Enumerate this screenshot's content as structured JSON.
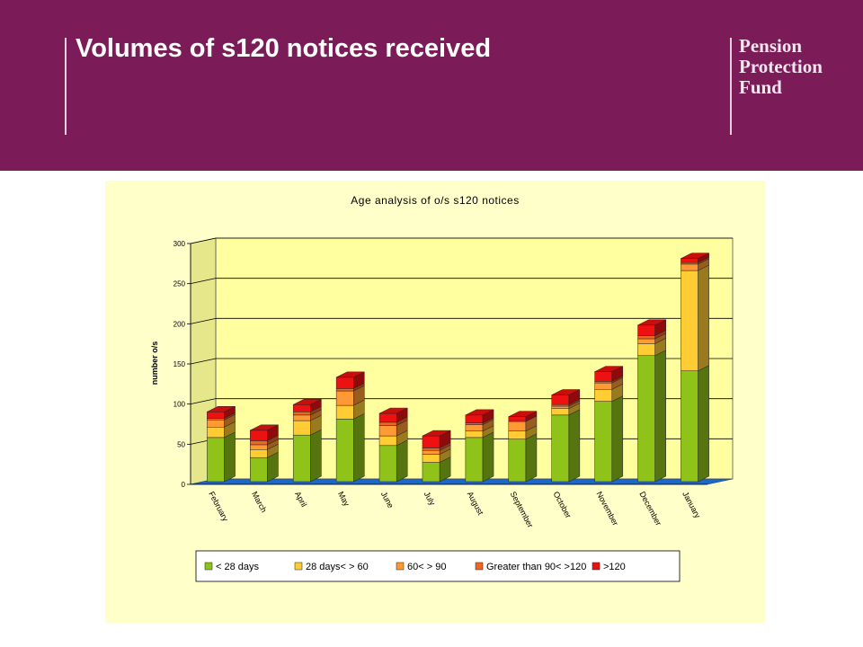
{
  "header": {
    "title": "Volumes of s120 notices received",
    "logo_lines": [
      "Pension",
      "Protection",
      "Fund"
    ],
    "background": "#7b1c58"
  },
  "chart_data": {
    "type": "bar",
    "stacked": true,
    "three_d": true,
    "title": "Age analysis of o/s s120 notices",
    "xlabel": "",
    "ylabel": "number o/s",
    "ylim": [
      0,
      300
    ],
    "yticks": [
      0,
      50,
      100,
      150,
      200,
      250,
      300
    ],
    "grid": true,
    "legend_position": "bottom",
    "categories": [
      "February",
      "March",
      "April",
      "May",
      "June",
      "July",
      "August",
      "September",
      "October",
      "November",
      "December",
      "January"
    ],
    "series": [
      {
        "name": "< 28 days",
        "color": "#8fc31a",
        "values": [
          55,
          30,
          58,
          78,
          45,
          24,
          55,
          53,
          83,
          100,
          157,
          138
        ]
      },
      {
        "name": "28 days<  > 60",
        "color": "#ffcc33",
        "values": [
          13,
          10,
          18,
          17,
          12,
          10,
          8,
          10,
          8,
          15,
          15,
          125
        ]
      },
      {
        "name": "60<  > 90",
        "color": "#ff9933",
        "values": [
          9,
          6,
          7,
          18,
          13,
          5,
          8,
          12,
          3,
          8,
          6,
          8
        ]
      },
      {
        "name": "Greater than 90<  >120",
        "color": "#ee6622",
        "values": [
          2,
          5,
          4,
          3,
          4,
          3,
          2,
          0,
          2,
          2,
          4,
          2
        ]
      },
      {
        "name": ">120",
        "color": "#ee1111",
        "values": [
          8,
          13,
          9,
          14,
          11,
          15,
          10,
          6,
          12,
          12,
          13,
          5
        ]
      }
    ],
    "colors": {
      "plot_background": "#ffff9f",
      "panel_background": "#ffffc9",
      "floor": "#1e66c8"
    }
  }
}
